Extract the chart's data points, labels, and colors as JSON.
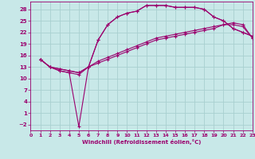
{
  "xlabel": "Windchill (Refroidissement éolien,°C)",
  "bg_color": "#c8e8e8",
  "line_color": "#9b006e",
  "grid_color": "#a8d0d0",
  "xlim": [
    0,
    23
  ],
  "ylim": [
    -3.5,
    30
  ],
  "xticks": [
    0,
    1,
    2,
    3,
    4,
    5,
    6,
    7,
    8,
    9,
    10,
    11,
    12,
    13,
    14,
    15,
    16,
    17,
    18,
    19,
    20,
    21,
    22,
    23
  ],
  "yticks": [
    -2,
    1,
    4,
    7,
    10,
    13,
    16,
    19,
    22,
    25,
    28
  ],
  "curves": [
    {
      "x": [
        1,
        2,
        3,
        4,
        5,
        6,
        7,
        8,
        9,
        10,
        11,
        12,
        13,
        14,
        15,
        16,
        17,
        18,
        19,
        20,
        21,
        22,
        23
      ],
      "y": [
        15,
        13,
        12,
        11.5,
        11,
        13,
        20,
        24,
        26,
        27,
        27.5,
        29,
        29,
        29,
        28.5,
        28.5,
        28.5,
        28,
        26,
        25,
        23,
        22,
        21
      ],
      "marker": "+"
    },
    {
      "x": [
        1,
        2,
        3,
        4,
        5,
        6,
        7,
        8,
        9,
        10,
        11,
        12,
        13,
        14,
        15,
        16,
        17,
        18,
        19,
        20,
        21,
        22,
        23
      ],
      "y": [
        15,
        13,
        12,
        11.5,
        -2.5,
        13,
        20,
        24,
        26,
        27,
        27.5,
        29,
        29,
        29,
        28.5,
        28.5,
        28.5,
        28,
        26,
        25,
        23,
        22,
        21
      ],
      "marker": "+"
    },
    {
      "x": [
        1,
        2,
        3,
        4,
        5,
        6,
        7,
        8,
        9,
        10,
        11,
        12,
        13,
        14,
        15,
        16,
        17,
        18,
        19,
        20,
        21,
        22,
        23
      ],
      "y": [
        15,
        13,
        12.5,
        12,
        11.5,
        13,
        14.5,
        15.5,
        16.5,
        17.5,
        18.5,
        19.5,
        20.5,
        21,
        21.5,
        22,
        22.5,
        23,
        23.5,
        24,
        24,
        23.5,
        20.5
      ],
      "marker": "+"
    },
    {
      "x": [
        1,
        2,
        3,
        4,
        5,
        6,
        7,
        8,
        9,
        10,
        11,
        12,
        13,
        14,
        15,
        16,
        17,
        18,
        19,
        20,
        21,
        22,
        23
      ],
      "y": [
        15,
        13,
        12.5,
        12,
        11.5,
        13,
        14,
        15,
        16,
        17,
        18,
        19,
        20,
        20.5,
        21,
        21.5,
        22,
        22.5,
        23,
        24,
        24.5,
        24,
        20.5
      ],
      "marker": "+"
    }
  ]
}
